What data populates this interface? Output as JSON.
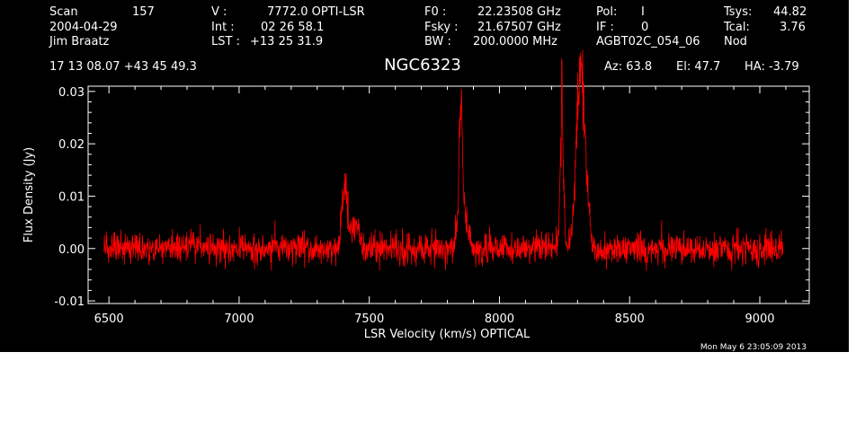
{
  "header": {
    "scan_label": "Scan",
    "scan_value": "157",
    "date": "2004-04-29",
    "observer": "Jim Braatz",
    "v_label": "V   :",
    "v_value": "7772.0 OPTI-LSR",
    "int_label": "Int  :",
    "int_value": "02 26 58.1",
    "lst_label": "LST :",
    "lst_value": "+13 25 31.9",
    "f0_label": "F0   :",
    "f0_value": "22.23508 GHz",
    "fsky_label": "Fsky :",
    "fsky_value": "21.67507 GHz",
    "bw_label": "BW   :",
    "bw_value": "200.0000 MHz",
    "pol_label": "Pol:",
    "pol_value": "I",
    "if_label": "IF :",
    "if_value": "0",
    "proc": "AGBT02C_054_06",
    "tsys_label": "Tsys:",
    "tsys_value": "44.82",
    "tcal_label": "Tcal:",
    "tcal_value": "3.76",
    "nod": "Nod",
    "coords": "17 13 08.07  +43 45 49.3",
    "az": "Az:  63.8",
    "el": "El:  47.7",
    "ha": "HA: -3.79"
  },
  "footer": {
    "timestamp": "Mon May  6 23:05:09 2013"
  },
  "colors": {
    "background": "#000000",
    "axes": "#ffffff",
    "trace": "#ff0000"
  },
  "chart_data": {
    "type": "line",
    "title": "NGC6323",
    "xlabel": "LSR Velocity (km/s) OPTICAL",
    "ylabel": "Flux Density (Jy)",
    "xlim": [
      6420,
      9190
    ],
    "ylim": [
      -0.0105,
      0.031
    ],
    "x_ticks": [
      6500,
      7000,
      7500,
      8000,
      8500,
      9000
    ],
    "y_ticks": [
      -0.01,
      0.0,
      0.01,
      0.02,
      0.03
    ],
    "y_tick_labels": [
      "-0.01",
      "0.00",
      "0.01",
      "0.02",
      "0.03"
    ],
    "grid": false,
    "series": [
      {
        "x_range": [
          6480,
          9090
        ],
        "noise_rms": 0.0015,
        "features": [
          {
            "center": 7405,
            "peak": 0.013,
            "width": 10
          },
          {
            "center": 7445,
            "peak": 0.005,
            "width": 15
          },
          {
            "center": 7852,
            "peak": 0.024,
            "width": 6
          },
          {
            "center": 7860,
            "peak": 0.006,
            "width": 20
          },
          {
            "center": 8240,
            "peak": 0.027,
            "width": 6
          },
          {
            "center": 8305,
            "peak": 0.025,
            "width": 14
          },
          {
            "center": 8325,
            "peak": 0.018,
            "width": 14
          }
        ]
      }
    ]
  }
}
